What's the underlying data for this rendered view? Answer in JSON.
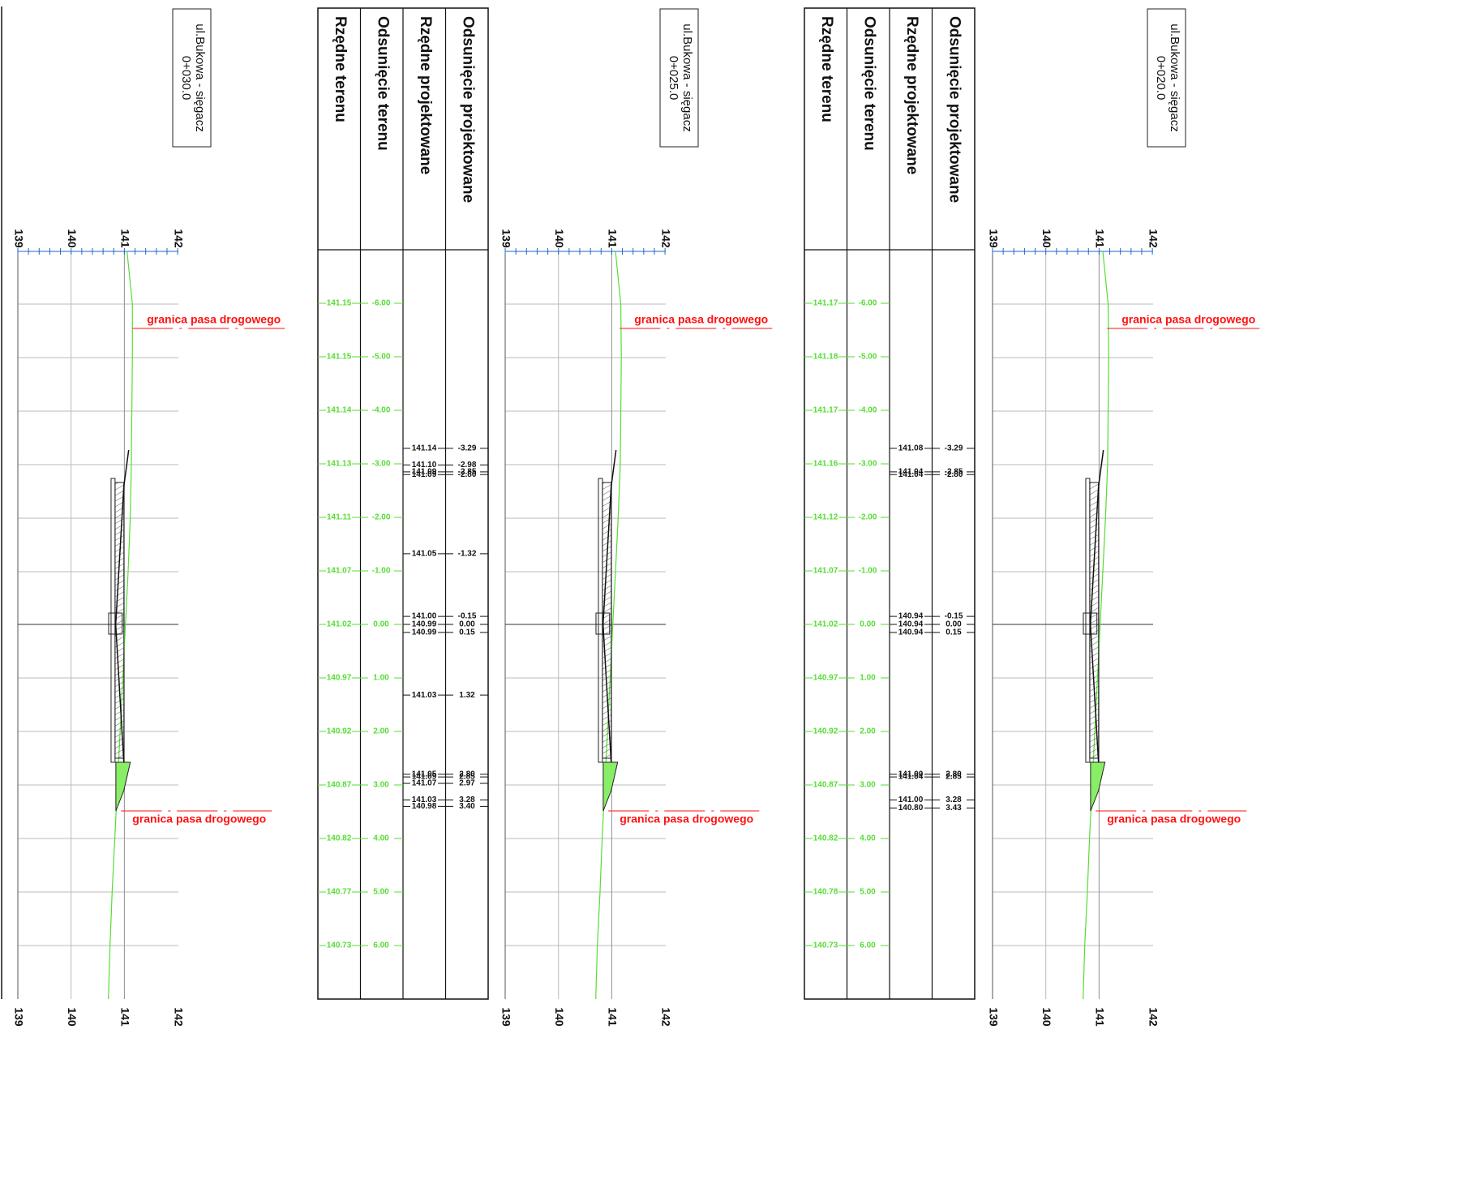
{
  "legend": {
    "boundary_label": "granica pasa drogowego"
  },
  "table_headers": [
    "Rzędne terenu",
    "Odsunięcie terenu",
    "Rzędne  projektowane",
    "Odsunięcie  projektowane"
  ],
  "sections": [
    {
      "title_line1": "ul.Bukowa - sięgacz",
      "title_line2": "0+030.0",
      "axis_ticks": [
        "139",
        "140",
        "141",
        "142"
      ],
      "terrain_rows": [
        {
          "elev": "141.15",
          "offset": "-6.00"
        },
        {
          "elev": "141.15",
          "offset": "-5.00"
        },
        {
          "elev": "141.14",
          "offset": "-4.00"
        },
        {
          "elev": "141.13",
          "offset": "-3.00"
        },
        {
          "elev": "141.11",
          "offset": "-2.00"
        },
        {
          "elev": "141.07",
          "offset": "-1.00"
        },
        {
          "elev": "141.02",
          "offset": "0.00"
        },
        {
          "elev": "140.97",
          "offset": "1.00"
        },
        {
          "elev": "140.92",
          "offset": "2.00"
        },
        {
          "elev": "140.87",
          "offset": "3.00"
        },
        {
          "elev": "140.82",
          "offset": "4.00"
        },
        {
          "elev": "140.77",
          "offset": "5.00"
        },
        {
          "elev": "140.73",
          "offset": "6.00"
        }
      ],
      "design_rows": []
    },
    {
      "title_line1": "ul.Bukowa - sięgacz",
      "title_line2": "0+025.0",
      "axis_ticks": [
        "139",
        "140",
        "141",
        "142"
      ],
      "terrain_rows": [
        {
          "elev": "141.17",
          "offset": "-6.00"
        },
        {
          "elev": "141.18",
          "offset": "-5.00"
        },
        {
          "elev": "141.17",
          "offset": "-4.00"
        },
        {
          "elev": "141.16",
          "offset": "-3.00"
        },
        {
          "elev": "141.12",
          "offset": "-2.00"
        },
        {
          "elev": "141.07",
          "offset": "-1.00"
        },
        {
          "elev": "141.02",
          "offset": "0.00"
        },
        {
          "elev": "140.97",
          "offset": "1.00"
        },
        {
          "elev": "140.92",
          "offset": "2.00"
        },
        {
          "elev": "140.87",
          "offset": "3.00"
        },
        {
          "elev": "140.82",
          "offset": "4.00"
        },
        {
          "elev": "140.78",
          "offset": "5.00"
        },
        {
          "elev": "140.73",
          "offset": "6.00"
        }
      ],
      "design_rows": [
        {
          "elev": "141.14",
          "offset": "-3.29"
        },
        {
          "elev": "141.10",
          "offset": "-2.98"
        },
        {
          "elev": "141.09",
          "offset": "-2.85"
        },
        {
          "elev": "141.09",
          "offset": "-2.80"
        },
        {
          "elev": "141.05",
          "offset": "-1.32"
        },
        {
          "elev": "141.00",
          "offset": "-0.15"
        },
        {
          "elev": "140.99",
          "offset": "0.00"
        },
        {
          "elev": "140.99",
          "offset": "0.15"
        },
        {
          "elev": "141.03",
          "offset": "1.32"
        },
        {
          "elev": "141.05",
          "offset": "2.80"
        },
        {
          "elev": "141.09",
          "offset": "2.85"
        },
        {
          "elev": "141.07",
          "offset": "2.97"
        },
        {
          "elev": "141.03",
          "offset": "3.28"
        },
        {
          "elev": "140.98",
          "offset": "3.40"
        }
      ]
    },
    {
      "title_line1": "ul.Bukowa - sięgacz",
      "title_line2": "0+020.0",
      "axis_ticks": [
        "139",
        "140",
        "141",
        "142"
      ],
      "terrain_rows": [],
      "design_rows": [
        {
          "elev": "141.08",
          "offset": "-3.29"
        },
        {
          "elev": "141.04",
          "offset": "-2.85"
        },
        {
          "elev": "141.04",
          "offset": "-2.80"
        },
        {
          "elev": "140.94",
          "offset": "-0.15"
        },
        {
          "elev": "140.94",
          "offset": "0.00"
        },
        {
          "elev": "140.94",
          "offset": "0.15"
        },
        {
          "elev": "141.00",
          "offset": "2.80"
        },
        {
          "elev": "141.04",
          "offset": "2.85"
        },
        {
          "elev": "141.00",
          "offset": "3.28"
        },
        {
          "elev": "140.80",
          "offset": "3.43"
        }
      ]
    }
  ]
}
